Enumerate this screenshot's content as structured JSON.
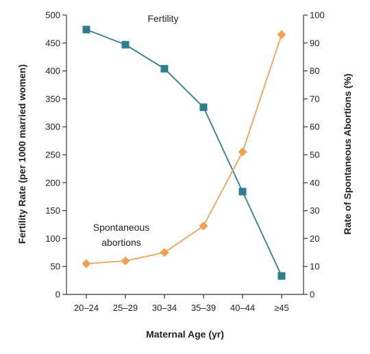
{
  "chart_data": {
    "type": "line",
    "categories": [
      "20–24",
      "25–29",
      "30–34",
      "35–39",
      "40–44",
      "≥45"
    ],
    "xlabel": "Maternal Age (yr)",
    "ylabel_left": "Fertility Rate (per 1000 married women)",
    "ylabel_right": "Rate of Spontaneous Abortions (%)",
    "ylim_left": [
      0,
      500
    ],
    "ylim_right": [
      0,
      100
    ],
    "yticks_left": [
      "0",
      "50",
      "100",
      "150",
      "200",
      "250",
      "300",
      "350",
      "400",
      "450",
      "500"
    ],
    "yticks_right": [
      "0",
      "10",
      "20",
      "30",
      "40",
      "50",
      "60",
      "70",
      "80",
      "90",
      "100"
    ],
    "grid": false,
    "series": [
      {
        "name": "Fertility",
        "axis": "left",
        "color": "#2e7d8c",
        "marker": "square",
        "values": [
          474,
          447,
          404,
          335,
          184,
          33
        ]
      },
      {
        "name": "Spontaneous abortions",
        "axis": "right",
        "color": "#f0a050",
        "marker": "diamond",
        "values": [
          11,
          12,
          15,
          24.5,
          51,
          93
        ]
      }
    ]
  }
}
